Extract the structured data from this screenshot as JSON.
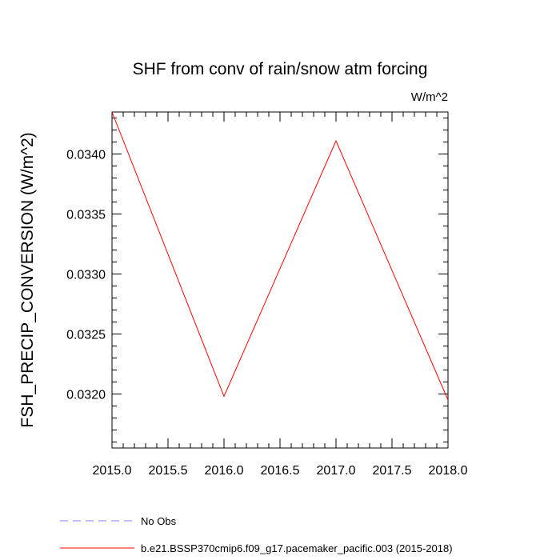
{
  "chart_data": {
    "type": "line",
    "title": "SHF from conv of rain/snow atm forcing",
    "units": "W/m^2",
    "xlabel": "",
    "ylabel": "FSH_PRECIP_CONVERSION  (W/m^2)",
    "xlim": [
      2015.0,
      2018.0
    ],
    "ylim": [
      0.03155,
      0.03435
    ],
    "x_ticks": [
      2015.0,
      2015.5,
      2016.0,
      2016.5,
      2017.0,
      2017.5,
      2018.0
    ],
    "x_tick_labels": [
      "2015.0",
      "2015.5",
      "2016.0",
      "2016.5",
      "2017.0",
      "2017.5",
      "2018.0"
    ],
    "y_ticks": [
      0.032,
      0.0325,
      0.033,
      0.0335,
      0.034
    ],
    "y_tick_labels": [
      "0.0320",
      "0.0325",
      "0.0330",
      "0.0335",
      "0.0340"
    ],
    "grid": false,
    "legend_position": "bottom",
    "series": [
      {
        "name": "No Obs",
        "color": "#8080ff",
        "dash": "dashed",
        "x": [],
        "y": []
      },
      {
        "name": "b.e21.BSSP370cmip6.f09_g17.pacemaker_pacific.003 (2015-2018)",
        "color": "#ff0000",
        "dash": "solid",
        "x": [
          2015.0,
          2016.0,
          2017.0,
          2018.0
        ],
        "y": [
          0.03435,
          0.03198,
          0.03411,
          0.03195
        ]
      }
    ]
  }
}
